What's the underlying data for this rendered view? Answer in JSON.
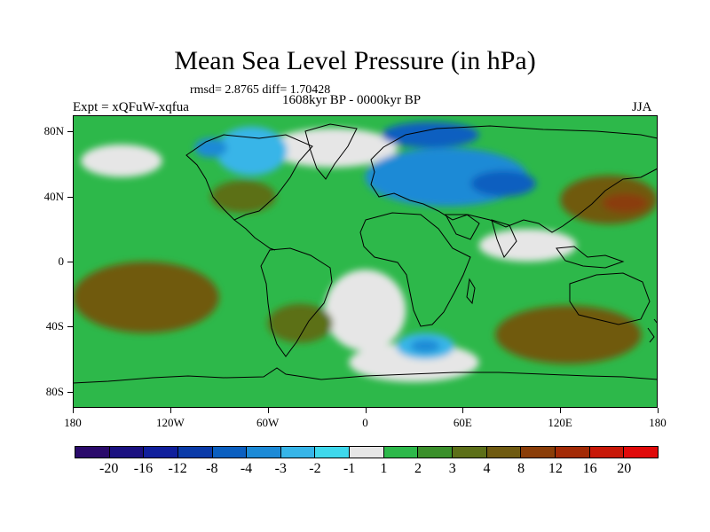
{
  "header": {
    "title": "Mean Sea Level Pressure (in hPa)",
    "stats": "rmsd= 2.8765  diff= 1.70428",
    "period": "1608kyr BP - 0000kyr BP",
    "experiment": "Expt = xQFuW-xqfua",
    "season": "JJA"
  },
  "map": {
    "lat_labels": [
      "80N",
      "40N",
      "0",
      "40S",
      "80S"
    ],
    "lon_labels": [
      "180",
      "120W",
      "60W",
      "0",
      "60E",
      "120E",
      "180"
    ],
    "lat_values": [
      80,
      40,
      0,
      -40,
      -80
    ],
    "lon_values": [
      -180,
      -120,
      -60,
      0,
      60,
      120,
      180
    ],
    "lat_range": [
      -90,
      90
    ],
    "lon_range": [
      -180,
      180
    ],
    "anomaly_regions": [
      {
        "name": "northern-europe-asia-low",
        "lon": 50,
        "lat": 52,
        "rlon": 50,
        "rlat": 18,
        "level": "-3"
      },
      {
        "name": "scandinavia-core-low",
        "lon": 40,
        "lat": 78,
        "rlon": 30,
        "rlat": 8,
        "level": "-4"
      },
      {
        "name": "central-asia-core-low",
        "lon": 85,
        "lat": 48,
        "rlon": 20,
        "rlat": 8,
        "level": "-4"
      },
      {
        "name": "greenland-low",
        "lon": -70,
        "lat": 68,
        "rlon": 22,
        "rlat": 15,
        "level": "-2"
      },
      {
        "name": "greenland-core-low",
        "lon": -95,
        "lat": 70,
        "rlon": 10,
        "rlat": 6,
        "level": "-3"
      },
      {
        "name": "south-atlantic-low",
        "lon": 37,
        "lat": -52,
        "rlon": 18,
        "rlat": 8,
        "level": "-2"
      },
      {
        "name": "south-atlantic-core-low",
        "lon": 37,
        "lat": -52,
        "rlon": 9,
        "rlat": 4,
        "level": "-3"
      },
      {
        "name": "north-pacific-high",
        "lon": 150,
        "lat": 38,
        "rlon": 30,
        "rlat": 15,
        "level": "4"
      },
      {
        "name": "north-pacific-core-high",
        "lon": 160,
        "lat": 36,
        "rlon": 14,
        "rlat": 6,
        "level": "8"
      },
      {
        "name": "east-pacific-high",
        "lon": -135,
        "lat": -22,
        "rlon": 45,
        "rlat": 22,
        "level": "4"
      },
      {
        "name": "south-indian-high",
        "lon": 125,
        "lat": -45,
        "rlon": 45,
        "rlat": 18,
        "level": "4"
      },
      {
        "name": "south-america-high",
        "lon": -40,
        "lat": -38,
        "rlon": 20,
        "rlat": 12,
        "level": "3"
      },
      {
        "name": "north-atlantic-high",
        "lon": -75,
        "lat": 40,
        "rlon": 20,
        "rlat": 10,
        "level": "3"
      }
    ]
  },
  "colorbar": {
    "levels": [
      "-20",
      "-16",
      "-12",
      "-8",
      "-4",
      "-3",
      "-2",
      "-1",
      "1",
      "2",
      "3",
      "4",
      "8",
      "12",
      "16",
      "20"
    ],
    "colors": [
      "#2a0a6b",
      "#1a1080",
      "#101f9c",
      "#0a3aa8",
      "#0b5fc0",
      "#1c8ad6",
      "#37b5e8",
      "#3fd8ec",
      "#e6e6e6",
      "#2db84a",
      "#3a8f2a",
      "#5c6f18",
      "#6f5a10",
      "#8a3d08",
      "#a32a06",
      "#c81808",
      "#e00a0a"
    ]
  }
}
